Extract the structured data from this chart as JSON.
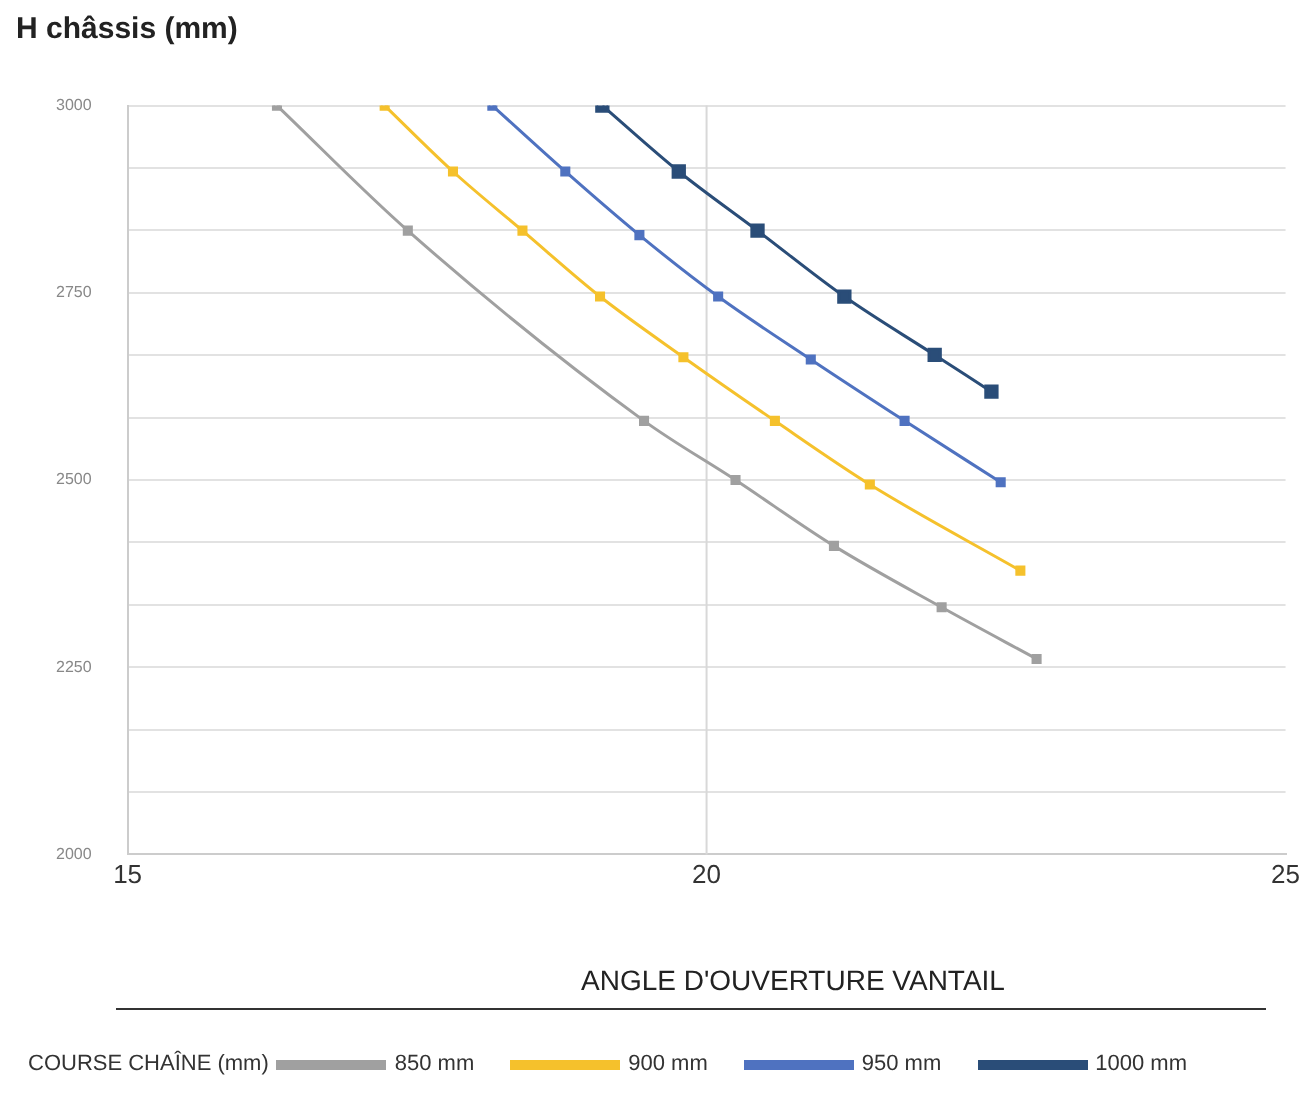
{
  "chart_data": {
    "type": "line",
    "ylabel": "H châssis (mm)",
    "xlabel": "ANGLE D'OUVERTURE VANTAIL",
    "legend_title": "COURSE CHAÎNE (mm)",
    "legend": "bottom",
    "grid": "y",
    "ref_lines": [
      {
        "axis": "x",
        "value": 20,
        "color": "#d8d8d8"
      }
    ],
    "marker": "square",
    "line_style": "solid",
    "xlim": [
      15,
      25
    ],
    "xticks": [
      15,
      20,
      25
    ],
    "ylim": [
      2000,
      3000
    ],
    "yticks": [
      2000,
      {
        "value": 2083.33,
        "label": null
      },
      {
        "value": 2166.67,
        "label": null
      },
      2250,
      {
        "value": 2333.33,
        "label": null
      },
      {
        "value": 2416.67,
        "label": null
      },
      2500,
      {
        "value": 2583.33,
        "label": null
      },
      {
        "value": 2666.67,
        "label": null
      },
      2750,
      {
        "value": 2833.33,
        "label": null
      },
      {
        "value": 2916.67,
        "label": null
      },
      3000
    ],
    "series": [
      {
        "name": "850 mm",
        "color": "#a0a0a0",
        "x": [
          16.29,
          17.42,
          19.46,
          20.25,
          21.1,
          22.03,
          22.85
        ],
        "values": [
          3000,
          2833,
          2579,
          2500,
          2412,
          2330,
          2261
        ]
      },
      {
        "name": "900 mm",
        "color": "#f5c12c",
        "x": [
          17.22,
          17.81,
          18.41,
          19.08,
          19.8,
          20.59,
          21.41,
          22.71
        ],
        "values": [
          3000,
          2912,
          2833,
          2745,
          2664,
          2579,
          2494,
          2379
        ]
      },
      {
        "name": "950 mm",
        "color": "#4f72c0",
        "x": [
          18.15,
          18.78,
          19.42,
          20.1,
          20.9,
          21.71,
          22.54
        ],
        "values": [
          3000,
          2912,
          2827,
          2745,
          2661,
          2579,
          2497
        ]
      },
      {
        "name": "1000 mm",
        "color": "#2a4d78",
        "x": [
          19.1,
          19.76,
          20.44,
          21.19,
          21.97,
          22.46
        ],
        "values": [
          3000,
          2912,
          2833,
          2745,
          2667,
          2618
        ]
      }
    ]
  }
}
